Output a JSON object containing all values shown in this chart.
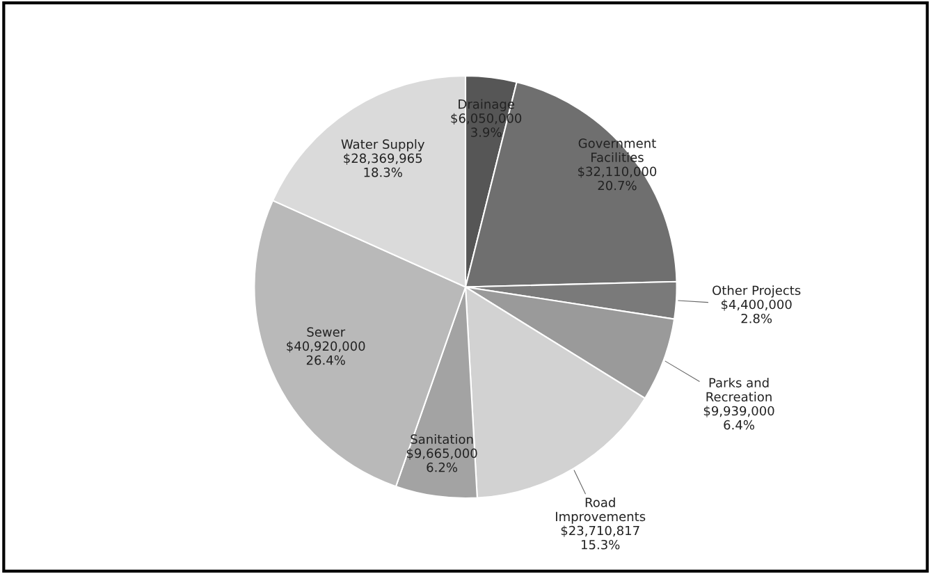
{
  "chart_data": {
    "type": "pie",
    "categories": [
      "Drainage",
      "Government\nFacilities",
      "Other Projects",
      "Parks and\nRecreation",
      "Road\nImprovements",
      "Sanitation",
      "Sewer",
      "Water Supply"
    ],
    "values": [
      6050000,
      32110000,
      4400000,
      9939000,
      23710817,
      9665000,
      40920000,
      28369965
    ],
    "value_labels": [
      "$6,050,000\n3.9%",
      "$32,110,000\n20.7%",
      "$4,400,000\n2.8%",
      "$9,939,000\n6.4%",
      "$23,710,817\n15.3%",
      "$9,665,000\n6.2%",
      "$40,920,000\n26.4%",
      "$28,369,965\n18.3%"
    ],
    "colors": [
      "#565656",
      "#6f6f6f",
      "#7a7a7a",
      "#9a9a9a",
      "#d2d2d2",
      "#a3a3a3",
      "#b9b9b9",
      "#dadada"
    ]
  }
}
